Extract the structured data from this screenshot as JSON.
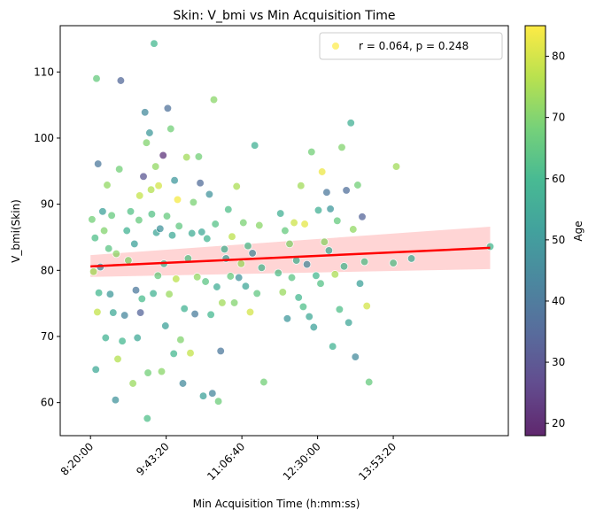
{
  "chart_data": {
    "type": "scatter",
    "title": "Skin: V_bmi vs Min Acquisition Time",
    "xlabel": "Min Acquisition Time (h:mm:ss)",
    "ylabel": "V_bmi(Skin)",
    "x_unit": "seconds since midnight",
    "xlim": [
      28000,
      57600
    ],
    "ylim": [
      55,
      117
    ],
    "x_ticks": [
      {
        "value": 30000,
        "label": "8:20:00"
      },
      {
        "value": 35000,
        "label": "9:43:20"
      },
      {
        "value": 40000,
        "label": "11:06:40"
      },
      {
        "value": 45000,
        "label": "12:30:00"
      },
      {
        "value": 50000,
        "label": "13:53:20"
      }
    ],
    "y_ticks": [
      60,
      70,
      80,
      90,
      100,
      110
    ],
    "legend": {
      "label": "r = 0.064, p = 0.248",
      "position": "top-right",
      "marker_color": "#fde725"
    },
    "colorbar": {
      "label": "Age",
      "min": 18,
      "max": 85,
      "ticks": [
        20,
        30,
        40,
        50,
        60,
        70,
        80
      ],
      "colormap": "viridis"
    },
    "regression": {
      "x": [
        30000,
        56400
      ],
      "y": [
        80.6,
        83.4
      ],
      "ci_lower": [
        79.0,
        80.2
      ],
      "ci_upper": [
        82.3,
        86.6
      ],
      "line_color": "#ff0000",
      "band_color": "#ffb3b3"
    },
    "points": [
      {
        "x": 30100,
        "y": 87.7,
        "age": 68
      },
      {
        "x": 30200,
        "y": 79.8,
        "age": 74
      },
      {
        "x": 30350,
        "y": 65.0,
        "age": 55
      },
      {
        "x": 30400,
        "y": 109.0,
        "age": 66
      },
      {
        "x": 30500,
        "y": 96.1,
        "age": 40
      },
      {
        "x": 30300,
        "y": 84.9,
        "age": 62
      },
      {
        "x": 30450,
        "y": 73.7,
        "age": 78
      },
      {
        "x": 30550,
        "y": 76.6,
        "age": 60
      },
      {
        "x": 30650,
        "y": 80.5,
        "age": 45
      },
      {
        "x": 30800,
        "y": 88.9,
        "age": 52
      },
      {
        "x": 30900,
        "y": 86.0,
        "age": 70
      },
      {
        "x": 31000,
        "y": 69.8,
        "age": 58
      },
      {
        "x": 31100,
        "y": 92.9,
        "age": 72
      },
      {
        "x": 31200,
        "y": 83.3,
        "age": 64
      },
      {
        "x": 31300,
        "y": 76.4,
        "age": 50
      },
      {
        "x": 31400,
        "y": 88.3,
        "age": 66
      },
      {
        "x": 31500,
        "y": 73.6,
        "age": 55
      },
      {
        "x": 31650,
        "y": 60.4,
        "age": 48
      },
      {
        "x": 31700,
        "y": 82.5,
        "age": 71
      },
      {
        "x": 31800,
        "y": 66.6,
        "age": 76
      },
      {
        "x": 31900,
        "y": 95.3,
        "age": 68
      },
      {
        "x": 32000,
        "y": 108.7,
        "age": 35
      },
      {
        "x": 32100,
        "y": 69.3,
        "age": 60
      },
      {
        "x": 32250,
        "y": 73.2,
        "age": 44
      },
      {
        "x": 32400,
        "y": 86.0,
        "age": 58
      },
      {
        "x": 32500,
        "y": 81.5,
        "age": 70
      },
      {
        "x": 32650,
        "y": 88.9,
        "age": 63
      },
      {
        "x": 32800,
        "y": 62.9,
        "age": 73
      },
      {
        "x": 32900,
        "y": 84.0,
        "age": 52
      },
      {
        "x": 33000,
        "y": 77.0,
        "age": 40
      },
      {
        "x": 33100,
        "y": 69.8,
        "age": 55
      },
      {
        "x": 33200,
        "y": 87.6,
        "age": 66
      },
      {
        "x": 33250,
        "y": 91.3,
        "age": 78
      },
      {
        "x": 33300,
        "y": 73.6,
        "age": 34
      },
      {
        "x": 33400,
        "y": 75.7,
        "age": 61
      },
      {
        "x": 33500,
        "y": 94.2,
        "age": 30
      },
      {
        "x": 33600,
        "y": 103.9,
        "age": 45
      },
      {
        "x": 33700,
        "y": 99.3,
        "age": 70
      },
      {
        "x": 33750,
        "y": 57.6,
        "age": 62
      },
      {
        "x": 33800,
        "y": 64.5,
        "age": 68
      },
      {
        "x": 33900,
        "y": 100.8,
        "age": 50
      },
      {
        "x": 34000,
        "y": 92.2,
        "age": 76
      },
      {
        "x": 34050,
        "y": 88.5,
        "age": 63
      },
      {
        "x": 34150,
        "y": 76.5,
        "age": 58
      },
      {
        "x": 34200,
        "y": 114.3,
        "age": 60
      },
      {
        "x": 34300,
        "y": 95.7,
        "age": 72
      },
      {
        "x": 34350,
        "y": 85.7,
        "age": 54
      },
      {
        "x": 34450,
        "y": 79.2,
        "age": 66
      },
      {
        "x": 34500,
        "y": 92.8,
        "age": 80
      },
      {
        "x": 34600,
        "y": 86.3,
        "age": 48
      },
      {
        "x": 34700,
        "y": 64.7,
        "age": 71
      },
      {
        "x": 34800,
        "y": 97.4,
        "age": 22
      },
      {
        "x": 34850,
        "y": 81.0,
        "age": 59
      },
      {
        "x": 34950,
        "y": 71.6,
        "age": 52
      },
      {
        "x": 35050,
        "y": 88.2,
        "age": 66
      },
      {
        "x": 35100,
        "y": 104.5,
        "age": 38
      },
      {
        "x": 35200,
        "y": 76.4,
        "age": 73
      },
      {
        "x": 35300,
        "y": 101.4,
        "age": 68
      },
      {
        "x": 35400,
        "y": 85.3,
        "age": 55
      },
      {
        "x": 35500,
        "y": 67.4,
        "age": 60
      },
      {
        "x": 35550,
        "y": 93.6,
        "age": 49
      },
      {
        "x": 35650,
        "y": 78.7,
        "age": 77
      },
      {
        "x": 35750,
        "y": 90.7,
        "age": 84
      },
      {
        "x": 35850,
        "y": 86.7,
        "age": 65
      },
      {
        "x": 35950,
        "y": 69.5,
        "age": 70
      },
      {
        "x": 36100,
        "y": 62.9,
        "age": 45
      },
      {
        "x": 36200,
        "y": 74.2,
        "age": 58
      },
      {
        "x": 36350,
        "y": 97.1,
        "age": 74
      },
      {
        "x": 36450,
        "y": 81.8,
        "age": 63
      },
      {
        "x": 36600,
        "y": 67.5,
        "age": 78
      },
      {
        "x": 36700,
        "y": 85.6,
        "age": 56
      },
      {
        "x": 36800,
        "y": 90.3,
        "age": 69
      },
      {
        "x": 36900,
        "y": 73.4,
        "age": 41
      },
      {
        "x": 37050,
        "y": 79.0,
        "age": 72
      },
      {
        "x": 37150,
        "y": 97.2,
        "age": 68
      },
      {
        "x": 37250,
        "y": 93.2,
        "age": 36
      },
      {
        "x": 37350,
        "y": 85.8,
        "age": 55
      },
      {
        "x": 37450,
        "y": 61.0,
        "age": 52
      },
      {
        "x": 37600,
        "y": 78.3,
        "age": 64
      },
      {
        "x": 37700,
        "y": 84.8,
        "age": 59
      },
      {
        "x": 37850,
        "y": 91.5,
        "age": 48
      },
      {
        "x": 37950,
        "y": 73.3,
        "age": 60
      },
      {
        "x": 38050,
        "y": 61.4,
        "age": 44
      },
      {
        "x": 38150,
        "y": 105.8,
        "age": 71
      },
      {
        "x": 38250,
        "y": 87.0,
        "age": 63
      },
      {
        "x": 38350,
        "y": 77.5,
        "age": 56
      },
      {
        "x": 38450,
        "y": 60.2,
        "age": 67
      },
      {
        "x": 38600,
        "y": 67.8,
        "age": 40
      },
      {
        "x": 38700,
        "y": 75.1,
        "age": 74
      },
      {
        "x": 38850,
        "y": 83.2,
        "age": 58
      },
      {
        "x": 38950,
        "y": 81.8,
        "age": 52
      },
      {
        "x": 39100,
        "y": 89.2,
        "age": 62
      },
      {
        "x": 39250,
        "y": 79.1,
        "age": 66
      },
      {
        "x": 39350,
        "y": 85.1,
        "age": 77
      },
      {
        "x": 39500,
        "y": 75.1,
        "age": 70
      },
      {
        "x": 39650,
        "y": 92.7,
        "age": 75
      },
      {
        "x": 39800,
        "y": 78.9,
        "age": 48
      },
      {
        "x": 39950,
        "y": 81.0,
        "age": 73
      },
      {
        "x": 40100,
        "y": 87.2,
        "age": 69
      },
      {
        "x": 40250,
        "y": 77.6,
        "age": 54
      },
      {
        "x": 40400,
        "y": 83.7,
        "age": 61
      },
      {
        "x": 40550,
        "y": 73.7,
        "age": 80
      },
      {
        "x": 40700,
        "y": 82.6,
        "age": 45
      },
      {
        "x": 40850,
        "y": 98.9,
        "age": 57
      },
      {
        "x": 41000,
        "y": 76.5,
        "age": 65
      },
      {
        "x": 41150,
        "y": 86.8,
        "age": 71
      },
      {
        "x": 41300,
        "y": 80.4,
        "age": 60
      },
      {
        "x": 41450,
        "y": 63.1,
        "age": 68
      },
      {
        "x": 42400,
        "y": 79.6,
        "age": 62
      },
      {
        "x": 42550,
        "y": 88.6,
        "age": 57
      },
      {
        "x": 42700,
        "y": 76.7,
        "age": 73
      },
      {
        "x": 42850,
        "y": 86.0,
        "age": 66
      },
      {
        "x": 43000,
        "y": 72.7,
        "age": 49
      },
      {
        "x": 43150,
        "y": 84.0,
        "age": 70
      },
      {
        "x": 43300,
        "y": 78.9,
        "age": 64
      },
      {
        "x": 43450,
        "y": 87.2,
        "age": 79
      },
      {
        "x": 43600,
        "y": 81.5,
        "age": 58
      },
      {
        "x": 43750,
        "y": 75.9,
        "age": 60
      },
      {
        "x": 43900,
        "y": 92.8,
        "age": 74
      },
      {
        "x": 44050,
        "y": 74.5,
        "age": 62
      },
      {
        "x": 44150,
        "y": 87.0,
        "age": 82
      },
      {
        "x": 44300,
        "y": 80.9,
        "age": 45
      },
      {
        "x": 44450,
        "y": 73.0,
        "age": 55
      },
      {
        "x": 44600,
        "y": 97.9,
        "age": 68
      },
      {
        "x": 44750,
        "y": 71.4,
        "age": 52
      },
      {
        "x": 44900,
        "y": 79.2,
        "age": 60
      },
      {
        "x": 45050,
        "y": 89.1,
        "age": 57
      },
      {
        "x": 45200,
        "y": 78.0,
        "age": 63
      },
      {
        "x": 45300,
        "y": 94.9,
        "age": 83
      },
      {
        "x": 45450,
        "y": 84.3,
        "age": 71
      },
      {
        "x": 45600,
        "y": 91.8,
        "age": 40
      },
      {
        "x": 45750,
        "y": 83.0,
        "age": 56
      },
      {
        "x": 45850,
        "y": 89.3,
        "age": 49
      },
      {
        "x": 46000,
        "y": 68.5,
        "age": 58
      },
      {
        "x": 46150,
        "y": 79.4,
        "age": 75
      },
      {
        "x": 46300,
        "y": 87.5,
        "age": 66
      },
      {
        "x": 46450,
        "y": 74.1,
        "age": 62
      },
      {
        "x": 46600,
        "y": 98.6,
        "age": 70
      },
      {
        "x": 46750,
        "y": 80.6,
        "age": 60
      },
      {
        "x": 46900,
        "y": 92.1,
        "age": 37
      },
      {
        "x": 47050,
        "y": 72.1,
        "age": 54
      },
      {
        "x": 47200,
        "y": 102.3,
        "age": 57
      },
      {
        "x": 47350,
        "y": 86.2,
        "age": 72
      },
      {
        "x": 47500,
        "y": 66.9,
        "age": 45
      },
      {
        "x": 47650,
        "y": 92.9,
        "age": 68
      },
      {
        "x": 47800,
        "y": 78.0,
        "age": 52
      },
      {
        "x": 47950,
        "y": 88.1,
        "age": 34
      },
      {
        "x": 48100,
        "y": 81.3,
        "age": 62
      },
      {
        "x": 48250,
        "y": 74.6,
        "age": 80
      },
      {
        "x": 48400,
        "y": 63.1,
        "age": 66
      },
      {
        "x": 50000,
        "y": 81.1,
        "age": 62
      },
      {
        "x": 50200,
        "y": 95.7,
        "age": 74
      },
      {
        "x": 51200,
        "y": 81.8,
        "age": 56
      },
      {
        "x": 56400,
        "y": 83.6,
        "age": 60
      }
    ]
  }
}
